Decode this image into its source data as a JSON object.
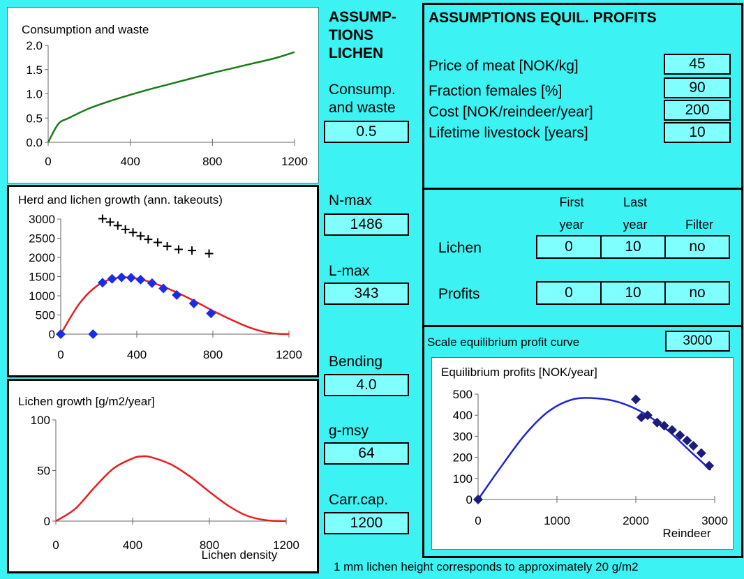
{
  "lichen": {
    "title_lines": [
      "ASSUMP-",
      "TIONS",
      "LICHEN"
    ],
    "consump_lines": [
      "Consump.",
      "and waste"
    ],
    "consump_value": "0.5",
    "nmax_label": "N-max",
    "nmax_value": "1486",
    "lmax_label": "L-max",
    "lmax_value": "343",
    "bending_label": "Bending",
    "bending_value": "4.0",
    "gmsy_label": "g-msy",
    "gmsy_value": "64",
    "carrcap_label": "Carr.cap.",
    "carrcap_value": "1200"
  },
  "profits": {
    "title": "ASSUMPTIONS EQUIL. PROFITS",
    "rows": [
      {
        "label": "Price of meat [NOK/kg]",
        "value": "45"
      },
      {
        "label": "Fraction females [%]",
        "value": "90"
      },
      {
        "label": "Cost [NOK/reindeer/year]",
        "value": "200"
      },
      {
        "label": "Lifetime livestock [years]",
        "value": "10"
      }
    ]
  },
  "filter_table": {
    "headers": {
      "first_1": "First",
      "first_2": "year",
      "last_1": "Last",
      "last_2": "year",
      "filter": "Filter"
    },
    "rows": [
      {
        "label": "Lichen",
        "first": "0",
        "last": "10",
        "filter": "no"
      },
      {
        "label": "Profits",
        "first": "0",
        "last": "10",
        "filter": "no"
      }
    ]
  },
  "scale": {
    "label": "Scale equilibrium profit curve",
    "value": "3000"
  },
  "footer_note": "1 mm lichen height corresponds to approximately 20 g/m2",
  "colors": {
    "background": "#3cf2f2",
    "input_box": "#80ffff",
    "green_line": "#1a7a1a",
    "red_line": "#e81e1e",
    "blue_marker": "#1a2de6",
    "navy_marker": "#1c1c7a",
    "blue_line": "#1a24d6"
  },
  "chart_data": [
    {
      "type": "line",
      "title": "Consumption and waste",
      "xlabel": "",
      "ylabel": "",
      "xlim": [
        0,
        1200
      ],
      "ylim": [
        0,
        2.0
      ],
      "xticks": [
        "0",
        "400",
        "800",
        "1200"
      ],
      "yticks": [
        "0.0",
        "0.5",
        "1.0",
        "1.5",
        "2.0"
      ],
      "series": [
        {
          "x": [
            0,
            50,
            100,
            200,
            300,
            400,
            500,
            600,
            700,
            800,
            900,
            1000,
            1100,
            1200
          ],
          "y": [
            0,
            0.38,
            0.5,
            0.7,
            0.85,
            0.98,
            1.1,
            1.21,
            1.32,
            1.43,
            1.53,
            1.63,
            1.73,
            1.86
          ]
        }
      ]
    },
    {
      "type": "scatter",
      "title": "Herd and lichen growth (ann. takeouts)",
      "xlim": [
        0,
        1200
      ],
      "ylim": [
        0,
        3000
      ],
      "xticks": [
        "0",
        "400",
        "800",
        "1200"
      ],
      "yticks": [
        "0",
        "500",
        "1000",
        "1500",
        "2000",
        "2500",
        "3000"
      ],
      "curve": {
        "x": [
          0,
          100,
          200,
          300,
          400,
          500,
          600,
          700,
          800,
          900,
          1000,
          1100,
          1200
        ],
        "y": [
          0,
          810,
          1290,
          1470,
          1450,
          1310,
          1110,
          870,
          610,
          370,
          160,
          30,
          0
        ]
      },
      "diamonds": {
        "x": [
          0,
          170,
          220,
          270,
          320,
          370,
          420,
          480,
          540,
          610,
          700,
          790
        ],
        "y": [
          0,
          0,
          1340,
          1440,
          1480,
          1470,
          1420,
          1330,
          1190,
          1020,
          800,
          540
        ]
      },
      "plus": {
        "x": [
          220,
          260,
          300,
          340,
          380,
          420,
          460,
          510,
          560,
          620,
          690,
          780
        ],
        "y": [
          3010,
          2920,
          2830,
          2730,
          2650,
          2560,
          2470,
          2390,
          2290,
          2210,
          2180,
          2100
        ]
      }
    },
    {
      "type": "line",
      "title": "Lichen growth [g/m2/year]",
      "xlabel": "Lichen density",
      "ylabel": "",
      "xlim": [
        0,
        1200
      ],
      "ylim": [
        0,
        100
      ],
      "xticks": [
        "0",
        "400",
        "800",
        "1200"
      ],
      "yticks": [
        "0",
        "50",
        "100"
      ],
      "series": [
        {
          "x": [
            0,
            100,
            200,
            300,
            400,
            450,
            500,
            600,
            700,
            800,
            900,
            1000,
            1100,
            1200
          ],
          "y": [
            0,
            12,
            33,
            52,
            62,
            64,
            63,
            56,
            44,
            29,
            15,
            5,
            0.8,
            0
          ]
        }
      ]
    },
    {
      "type": "scatter",
      "title": "Equilibrium profits [NOK/year]",
      "xlabel": "Reindeer",
      "ylabel": "",
      "xlim": [
        0,
        3000
      ],
      "ylim": [
        0,
        500
      ],
      "xticks": [
        "0",
        "1000",
        "2000",
        "3000"
      ],
      "yticks": [
        "0",
        "100",
        "200",
        "300",
        "400",
        "500"
      ],
      "curve": {
        "x": [
          0,
          300,
          600,
          900,
          1200,
          1500,
          1800,
          2100,
          2400,
          2700,
          2950
        ],
        "y": [
          0,
          160,
          310,
          420,
          475,
          480,
          460,
          410,
          330,
          225,
          140
        ]
      },
      "diamonds": {
        "x": [
          0,
          2000,
          2070,
          2150,
          2270,
          2360,
          2460,
          2560,
          2650,
          2730,
          2830,
          2930
        ],
        "y": [
          0,
          475,
          390,
          400,
          365,
          350,
          330,
          305,
          280,
          255,
          220,
          160
        ]
      }
    }
  ]
}
